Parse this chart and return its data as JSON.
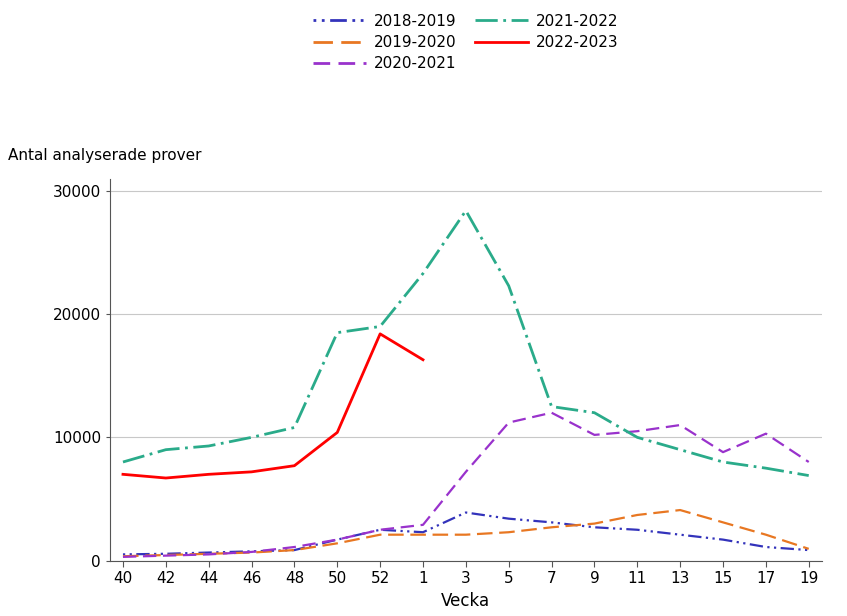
{
  "ylabel": "Antal analyserade prover",
  "xlabel": "Vecka",
  "xlabels": [
    "40",
    "42",
    "44",
    "46",
    "48",
    "50",
    "52",
    "1",
    "3",
    "5",
    "7",
    "9",
    "11",
    "13",
    "15",
    "17",
    "19"
  ],
  "x_positions": [
    0,
    1,
    2,
    3,
    4,
    5,
    6,
    7,
    8,
    9,
    10,
    11,
    12,
    13,
    14,
    15,
    16
  ],
  "ylim": [
    0,
    31000
  ],
  "yticks": [
    0,
    10000,
    20000,
    30000
  ],
  "series": {
    "2018-2019": {
      "color": "#3333bb",
      "linewidth": 1.6,
      "dash_pattern": [
        1,
        2,
        1,
        2,
        6,
        2
      ],
      "values": [
        500,
        550,
        650,
        750,
        850,
        1700,
        2500,
        2300,
        3900,
        3400,
        3100,
        2700,
        2500,
        2100,
        1700,
        1100,
        850
      ]
    },
    "2019-2020": {
      "color": "#e87722",
      "linewidth": 1.6,
      "dash_pattern": [
        7,
        3
      ],
      "values": [
        350,
        450,
        550,
        650,
        850,
        1400,
        2100,
        2100,
        2100,
        2300,
        2700,
        3000,
        3700,
        4100,
        3100,
        2100,
        950
      ]
    },
    "2020-2021": {
      "color": "#9932CC",
      "linewidth": 1.6,
      "dash_pattern": [
        6,
        3
      ],
      "values": [
        300,
        400,
        500,
        700,
        1100,
        1700,
        2500,
        2900,
        7200,
        11200,
        12000,
        10200,
        10500,
        11000,
        8800,
        10300,
        8000
      ]
    },
    "2021-2022": {
      "color": "#2aab8a",
      "linewidth": 2.0,
      "dash_pattern": [
        8,
        2,
        1,
        2
      ],
      "values": [
        8000,
        9000,
        9300,
        10000,
        10800,
        18500,
        19000,
        23300,
        28400,
        22300,
        12500,
        12000,
        10000,
        9000,
        8000,
        7500,
        6900
      ]
    },
    "2022-2023": {
      "color": "#ff0000",
      "linewidth": 2.0,
      "dash_pattern": null,
      "values": [
        7000,
        6700,
        7000,
        7200,
        7700,
        10400,
        18400,
        16300,
        null,
        null,
        null,
        null,
        null,
        null,
        null,
        null,
        null
      ]
    }
  },
  "background_color": "#ffffff",
  "grid_color": "#c8c8c8",
  "legend_entries": [
    [
      "2018-2019",
      "#3333bb",
      [
        1,
        2,
        1,
        2,
        6,
        2
      ]
    ],
    [
      "2019-2020",
      "#e87722",
      [
        7,
        3
      ]
    ],
    [
      "2020-2021",
      "#9932CC",
      [
        6,
        3
      ]
    ],
    [
      "2021-2022",
      "#2aab8a",
      [
        8,
        2,
        1,
        2
      ]
    ],
    [
      "2022-2023",
      "#ff0000",
      null
    ]
  ]
}
